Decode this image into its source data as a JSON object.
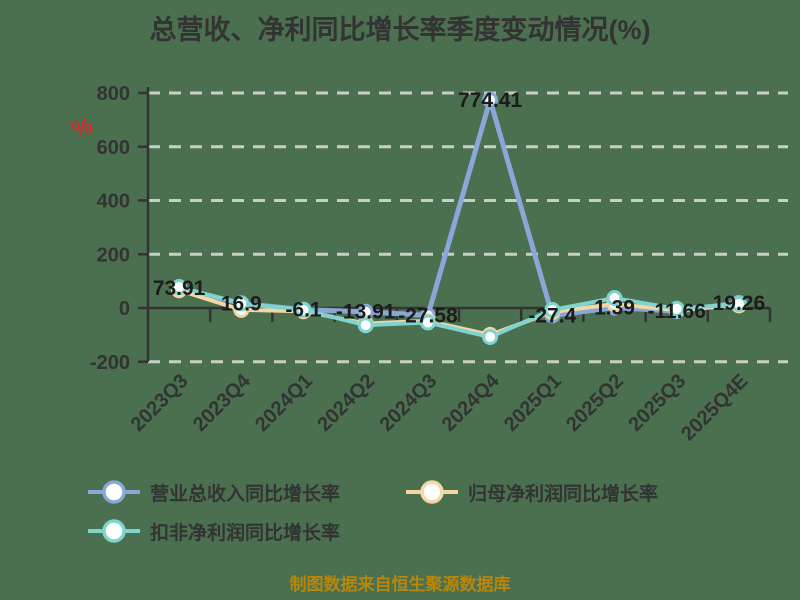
{
  "title": "总营收、净利同比增长率季度变动情况(%)",
  "y_axis_unit": "%",
  "footer": "制图数据来自恒生聚源数据库",
  "colors": {
    "background": "#4a7050",
    "axis": "#333333",
    "gridline": "#c9cfc7",
    "text": "#333333",
    "value_label": "#1c1c1c",
    "unit_symbol": "#d22d2d",
    "footer_text": "#b8860b",
    "marker_fill": "#ffffff"
  },
  "legend": {
    "items": [
      {
        "label": "营业总收入同比增长率"
      },
      {
        "label": "归母净利润同比增长率"
      },
      {
        "label": "扣非净利润同比增长率"
      }
    ]
  },
  "chart_data": {
    "type": "line",
    "title": "总营收、净利同比增长率季度变动情况(%)",
    "xlabel": "",
    "ylabel": "%",
    "ylim": [
      -200,
      800
    ],
    "y_ticks": [
      800,
      600,
      400,
      200,
      0,
      -200
    ],
    "grid": "dashed horizontal gridlines, solid zero axis",
    "legend_position": "bottom",
    "categories": [
      "2023Q3",
      "2023Q4",
      "2024Q1",
      "2024Q2",
      "2024Q3",
      "2024Q4",
      "2025Q1",
      "2025Q2",
      "2025Q3",
      "2025Q4E"
    ],
    "series": [
      {
        "name": "营业总收入同比增长率",
        "color": "#8aa7d8",
        "labels_shown": true,
        "values": [
          73.91,
          16.9,
          -6.1,
          -13.91,
          -27.58,
          774.41,
          -27.4,
          1.39,
          -11.66,
          19.26
        ]
      },
      {
        "name": "归母净利润同比增长率",
        "color": "#f3d8a6",
        "labels_shown": false,
        "values": [
          66,
          -7,
          -12,
          -58,
          -48,
          -100,
          -15,
          15,
          -8,
          10
        ]
      },
      {
        "name": "扣非净利润同比增长率",
        "color": "#7fd4cf",
        "labels_shown": false,
        "values": [
          78,
          17,
          -7,
          -64,
          -54,
          -108,
          -7,
          37,
          -3,
          15
        ]
      }
    ]
  }
}
